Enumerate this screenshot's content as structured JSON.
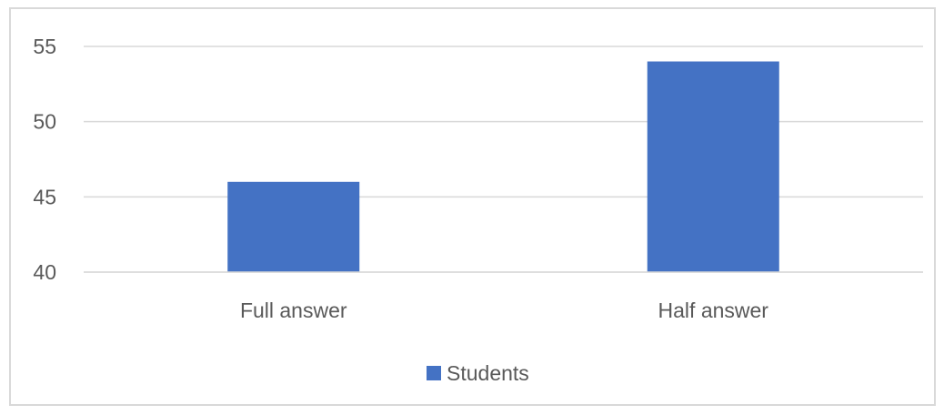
{
  "chart_data": {
    "type": "bar",
    "categories": [
      "Full answer",
      "Half answer"
    ],
    "series": [
      {
        "name": "Students",
        "values": [
          46,
          54
        ],
        "color": "#4472c4"
      }
    ],
    "ylim": [
      40,
      55
    ],
    "yticks": [
      40,
      45,
      50,
      55
    ],
    "grid": true,
    "legend": "bottom",
    "gridline_color": "#d9d9d9",
    "axis_color": "#d9d9d9"
  }
}
